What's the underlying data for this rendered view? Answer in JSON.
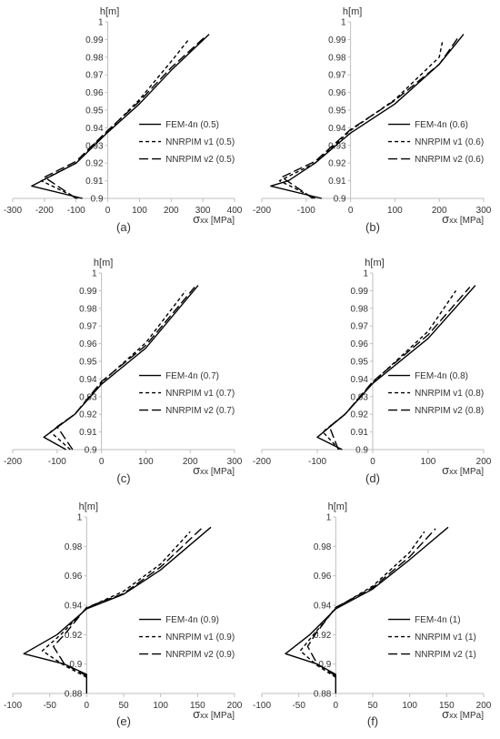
{
  "chart_data": [
    {
      "type": "line",
      "panel_label": "(a)",
      "ylabel": "h[m]",
      "xlabel": "σxx [MPa]",
      "xlim": [
        -300,
        400
      ],
      "xticks": [
        -300,
        -200,
        -100,
        0,
        100,
        200,
        300,
        400
      ],
      "ylim": [
        0.9,
        1.0
      ],
      "yticks": [
        "0.9",
        "0.91",
        "0.92",
        "0.93",
        "0.94",
        "0.95",
        "0.96",
        "0.97",
        "0.98",
        "0.99",
        "1"
      ],
      "legend_position": "right",
      "series": [
        {
          "name": "FEM-4n (0.5)",
          "dash": "solid",
          "points": [
            [
              -80,
              0.9
            ],
            [
              -240,
              0.907
            ],
            [
              -100,
              0.92
            ],
            [
              0,
              0.9375
            ],
            [
              100,
              0.9535
            ],
            [
              200,
              0.9725
            ],
            [
              320,
              0.993
            ]
          ]
        },
        {
          "name": "NNRPIM v1 (0.5)",
          "dash": "short",
          "points": [
            [
              -95,
              0.9
            ],
            [
              -210,
              0.91
            ],
            [
              -100,
              0.92
            ],
            [
              0,
              0.938
            ],
            [
              100,
              0.956
            ],
            [
              200,
              0.9775
            ],
            [
              255,
              0.99
            ]
          ]
        },
        {
          "name": "NNRPIM v2 (0.5)",
          "dash": "long",
          "points": [
            [
              -100,
              0.9
            ],
            [
              -200,
              0.912
            ],
            [
              -100,
              0.921
            ],
            [
              0,
              0.9385
            ],
            [
              100,
              0.955
            ],
            [
              200,
              0.974
            ],
            [
              310,
              0.992
            ]
          ]
        }
      ]
    },
    {
      "type": "line",
      "panel_label": "(b)",
      "ylabel": "h[m]",
      "xlabel": "σxx [MPa]",
      "xlim": [
        -200,
        300
      ],
      "xticks": [
        -200,
        -100,
        0,
        100,
        200,
        300
      ],
      "ylim": [
        0.9,
        1.0
      ],
      "yticks": [
        "0.9",
        "0.91",
        "0.92",
        "0.93",
        "0.94",
        "0.95",
        "0.96",
        "0.97",
        "0.98",
        "0.99",
        "1"
      ],
      "legend_position": "right",
      "series": [
        {
          "name": "FEM-4n (0.6)",
          "dash": "solid",
          "points": [
            [
              -65,
              0.9
            ],
            [
              -180,
              0.907
            ],
            [
              -140,
              0.91
            ],
            [
              -80,
              0.92
            ],
            [
              0,
              0.937
            ],
            [
              100,
              0.9535
            ],
            [
              200,
              0.976
            ],
            [
              255,
              0.993
            ]
          ]
        },
        {
          "name": "NNRPIM v1 (0.6)",
          "dash": "short",
          "points": [
            [
              -80,
              0.9
            ],
            [
              -160,
              0.91
            ],
            [
              -80,
              0.92
            ],
            [
              0,
              0.9385
            ],
            [
              100,
              0.956
            ],
            [
              200,
              0.98
            ],
            [
              208,
              0.99
            ]
          ]
        },
        {
          "name": "NNRPIM v2 (0.6)",
          "dash": "long",
          "points": [
            [
              -85,
              0.9
            ],
            [
              -155,
              0.912
            ],
            [
              -80,
              0.921
            ],
            [
              0,
              0.939
            ],
            [
              100,
              0.9555
            ],
            [
              200,
              0.976
            ],
            [
              245,
              0.992
            ]
          ]
        }
      ]
    },
    {
      "type": "line",
      "panel_label": "(c)",
      "ylabel": "h[m]",
      "xlabel": "σxx [MPa]",
      "xlim": [
        -200,
        300
      ],
      "xticks": [
        -200,
        -100,
        0,
        100,
        200,
        300
      ],
      "ylim": [
        0.9,
        1.0
      ],
      "yticks": [
        "0.9",
        "0.91",
        "0.92",
        "0.93",
        "0.94",
        "0.95",
        "0.96",
        "0.97",
        "0.98",
        "0.99",
        "1"
      ],
      "legend_position": "right",
      "series": [
        {
          "name": "FEM-4n (0.7)",
          "dash": "solid",
          "points": [
            [
              -80,
              0.9
            ],
            [
              -130,
              0.907
            ],
            [
              -60,
              0.92
            ],
            [
              0,
              0.937
            ],
            [
              100,
              0.9575
            ],
            [
              218,
              0.993
            ]
          ]
        },
        {
          "name": "NNRPIM v1 (0.7)",
          "dash": "short",
          "points": [
            [
              -70,
              0.9
            ],
            [
              -115,
              0.91
            ],
            [
              -60,
              0.92
            ],
            [
              0,
              0.938
            ],
            [
              100,
              0.9605
            ],
            [
              190,
              0.99
            ]
          ]
        },
        {
          "name": "NNRPIM v2 (0.7)",
          "dash": "long",
          "points": [
            [
              -65,
              0.9
            ],
            [
              -100,
              0.913
            ],
            [
              -60,
              0.92
            ],
            [
              0,
              0.9385
            ],
            [
              100,
              0.959
            ],
            [
              210,
              0.992
            ]
          ]
        }
      ]
    },
    {
      "type": "line",
      "panel_label": "(d)",
      "ylabel": "h[m]",
      "xlabel": "σxx [MPa]",
      "xlim": [
        -200,
        200
      ],
      "xticks": [
        -200,
        -100,
        0,
        100,
        200
      ],
      "ylim": [
        0.9,
        1.0
      ],
      "yticks": [
        "0.9",
        "0.91",
        "0.92",
        "0.93",
        "0.94",
        "0.95",
        "0.96",
        "0.97",
        "0.98",
        "0.99",
        "1"
      ],
      "legend_position": "right",
      "series": [
        {
          "name": "FEM-4n (0.8)",
          "dash": "solid",
          "points": [
            [
              -55,
              0.9
            ],
            [
              -100,
              0.907
            ],
            [
              -50,
              0.92
            ],
            [
              0,
              0.9375
            ],
            [
              100,
              0.963
            ],
            [
              185,
              0.993
            ]
          ]
        },
        {
          "name": "NNRPIM v1 (0.8)",
          "dash": "short",
          "points": [
            [
              -60,
              0.9
            ],
            [
              -90,
              0.91
            ],
            [
              -50,
              0.92
            ],
            [
              0,
              0.938
            ],
            [
              100,
              0.967
            ],
            [
              150,
              0.99
            ]
          ]
        },
        {
          "name": "NNRPIM v2 (0.8)",
          "dash": "long",
          "points": [
            [
              -62,
              0.9
            ],
            [
              -78,
              0.913
            ],
            [
              -50,
              0.92
            ],
            [
              0,
              0.9385
            ],
            [
              100,
              0.965
            ],
            [
              175,
              0.992
            ]
          ]
        }
      ]
    },
    {
      "type": "line",
      "panel_label": "(e)",
      "ylabel": "h[m]",
      "xlabel": "σxx [MPa]",
      "xlim": [
        -100,
        200
      ],
      "xticks": [
        -100,
        -50,
        0,
        50,
        100,
        150,
        200
      ],
      "ylim": [
        0.88,
        1.0
      ],
      "yticks": [
        "0.88",
        "0.9",
        "0.92",
        "0.94",
        "0.96",
        "0.98",
        "1"
      ],
      "legend_position": "right",
      "series": [
        {
          "name": "FEM-4n (0.9)",
          "dash": "solid",
          "points": [
            [
              0,
              0.88
            ],
            [
              0,
              0.893
            ],
            [
              -30,
              0.9
            ],
            [
              -85,
              0.907
            ],
            [
              -40,
              0.92
            ],
            [
              0,
              0.9375
            ],
            [
              50,
              0.9475
            ],
            [
              100,
              0.964
            ],
            [
              168,
              0.993
            ]
          ]
        },
        {
          "name": "NNRPIM v1 (0.9)",
          "dash": "short",
          "points": [
            [
              0,
              0.891
            ],
            [
              -30,
              0.899
            ],
            [
              -60,
              0.909
            ],
            [
              -35,
              0.92
            ],
            [
              0,
              0.938
            ],
            [
              50,
              0.9495
            ],
            [
              100,
              0.968
            ],
            [
              140,
              0.99
            ]
          ]
        },
        {
          "name": "NNRPIM v2 (0.9)",
          "dash": "long",
          "points": [
            [
              0,
              0.892
            ],
            [
              -30,
              0.9
            ],
            [
              -45,
              0.912
            ],
            [
              -30,
              0.92
            ],
            [
              0,
              0.9385
            ],
            [
              50,
              0.948
            ],
            [
              100,
              0.966
            ],
            [
              155,
              0.992
            ]
          ]
        }
      ]
    },
    {
      "type": "line",
      "panel_label": "(f)",
      "ylabel": "h[m]",
      "xlabel": "σxx [MPa]",
      "xlim": [
        -100,
        200
      ],
      "xticks": [
        -100,
        -50,
        0,
        50,
        100,
        150,
        200
      ],
      "ylim": [
        0.88,
        1.0
      ],
      "yticks": [
        "0.88",
        "0.9",
        "0.92",
        "0.94",
        "0.96",
        "0.98",
        "1"
      ],
      "legend_position": "right",
      "series": [
        {
          "name": "FEM-4n (1)",
          "dash": "solid",
          "points": [
            [
              0,
              0.88
            ],
            [
              0,
              0.893
            ],
            [
              -25,
              0.9
            ],
            [
              -68,
              0.907
            ],
            [
              -35,
              0.92
            ],
            [
              0,
              0.9375
            ],
            [
              50,
              0.951
            ],
            [
              100,
              0.971
            ],
            [
              152,
              0.993
            ]
          ]
        },
        {
          "name": "NNRPIM v1 (1)",
          "dash": "short",
          "points": [
            [
              0,
              0.891
            ],
            [
              -25,
              0.899
            ],
            [
              -48,
              0.909
            ],
            [
              -30,
              0.92
            ],
            [
              0,
              0.938
            ],
            [
              50,
              0.953
            ],
            [
              100,
              0.976
            ],
            [
              120,
              0.99
            ]
          ]
        },
        {
          "name": "NNRPIM v2 (1)",
          "dash": "long",
          "points": [
            [
              0,
              0.892
            ],
            [
              -25,
              0.9
            ],
            [
              -38,
              0.912
            ],
            [
              -28,
              0.92
            ],
            [
              0,
              0.9385
            ],
            [
              50,
              0.952
            ],
            [
              100,
              0.973
            ],
            [
              135,
              0.992
            ]
          ]
        }
      ]
    }
  ]
}
